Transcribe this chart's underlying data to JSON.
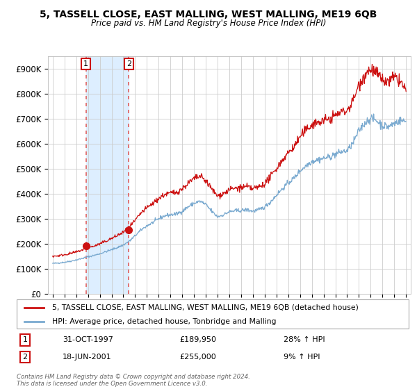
{
  "title": "5, TASSELL CLOSE, EAST MALLING, WEST MALLING, ME19 6QB",
  "subtitle": "Price paid vs. HM Land Registry's House Price Index (HPI)",
  "legend_line1": "5, TASSELL CLOSE, EAST MALLING, WEST MALLING, ME19 6QB (detached house)",
  "legend_line2": "HPI: Average price, detached house, Tonbridge and Malling",
  "footer": "Contains HM Land Registry data © Crown copyright and database right 2024.\nThis data is licensed under the Open Government Licence v3.0.",
  "transaction1_date": "31-OCT-1997",
  "transaction1_price": "£189,950",
  "transaction1_hpi": "28% ↑ HPI",
  "transaction2_date": "18-JUN-2001",
  "transaction2_price": "£255,000",
  "transaction2_hpi": "9% ↑ HPI",
  "ylim": [
    0,
    950000
  ],
  "yticks": [
    0,
    100000,
    200000,
    300000,
    400000,
    500000,
    600000,
    700000,
    800000,
    900000
  ],
  "hpi_color": "#7aaad0",
  "price_color": "#cc1111",
  "dot_color": "#cc1111",
  "vline_color": "#e06060",
  "shade_color": "#ddeeff",
  "marker1_x": 1997.83,
  "marker1_y": 189950,
  "marker2_x": 2001.46,
  "marker2_y": 255000,
  "background_color": "#ffffff",
  "grid_color": "#cccccc",
  "xlim_left": 1994.6,
  "xlim_right": 2025.4
}
